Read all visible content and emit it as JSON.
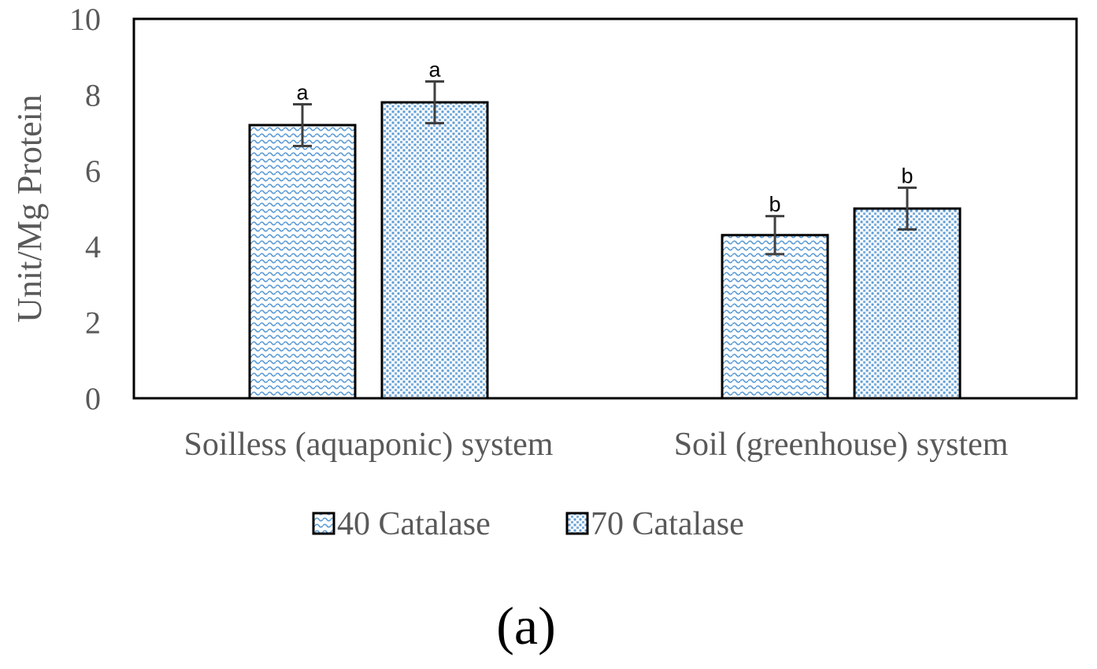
{
  "chart_data": {
    "type": "bar",
    "categories": [
      "Soilless (aquaponic) system",
      "Soil (greenhouse) system"
    ],
    "series": [
      {
        "name": "40 Catalase",
        "values": [
          7.2,
          4.3
        ],
        "errors": [
          0.55,
          0.5
        ],
        "labels": [
          "a",
          "b"
        ]
      },
      {
        "name": "70 Catalase",
        "values": [
          7.8,
          5.0
        ],
        "errors": [
          0.55,
          0.55
        ],
        "labels": [
          "a",
          "b"
        ]
      }
    ],
    "ylabel": "Unit/Mg Protein",
    "ylim": [
      0,
      10
    ],
    "yticks": [
      0,
      2,
      4,
      6,
      8,
      10
    ],
    "legend": "bottom",
    "grid": false,
    "panel_label": "(a)",
    "colors": {
      "pattern": "#5b9bd5",
      "outline": "#000000",
      "error_bar": "#404040"
    },
    "patterns": [
      "wave",
      "dots"
    ]
  }
}
